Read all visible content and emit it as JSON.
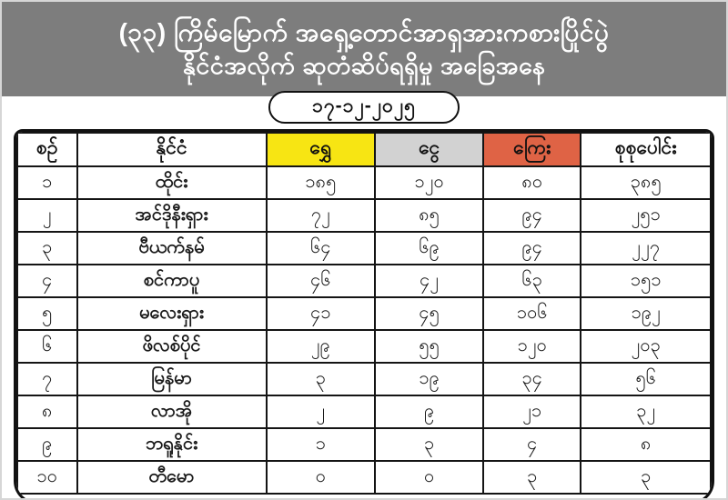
{
  "header": {
    "title_line1": "(၃၃) ကြိမ်မြောက် အရှေ့တောင်အာရှအားကစားပြိုင်ပွဲ",
    "title_line2": "နိုင်ငံအလိုက် ဆုတံဆိပ်ရရှိမှု အခြေအနေ",
    "bg_color": "#7d7d7d",
    "text_color": "#ffffff"
  },
  "date_badge": {
    "text": "၁၇-၁၂-၂၀၂၅"
  },
  "table": {
    "columns": [
      {
        "key": "no",
        "label": "စဉ်",
        "bg": "#ffffff"
      },
      {
        "key": "country",
        "label": "နိုင်ငံ",
        "bg": "#ffffff"
      },
      {
        "key": "gold",
        "label": "ရွှေ",
        "bg": "#f7e513"
      },
      {
        "key": "silver",
        "label": "ငွေ",
        "bg": "#d2d2d2"
      },
      {
        "key": "bronze",
        "label": "ကြေး",
        "bg": "#df6345"
      },
      {
        "key": "total",
        "label": "စုစုပေါင်း",
        "bg": "#ffffff"
      }
    ],
    "rows": [
      {
        "no": "၁",
        "country": "ထိုင်း",
        "gold": "၁၈၅",
        "silver": "၁၂၀",
        "bronze": "၈၀",
        "total": "၃၈၅"
      },
      {
        "no": "၂",
        "country": "အင်ဒိုနီးရှား",
        "gold": "၇၂",
        "silver": "၈၅",
        "bronze": "၉၄",
        "total": "၂၅၁"
      },
      {
        "no": "၃",
        "country": "ဗီယက်နမ်",
        "gold": "၆၄",
        "silver": "၆၉",
        "bronze": "၉၄",
        "total": "၂၂၇"
      },
      {
        "no": "၄",
        "country": "စင်ကာပူ",
        "gold": "၄၆",
        "silver": "၄၂",
        "bronze": "၆၃",
        "total": "၁၅၁"
      },
      {
        "no": "၅",
        "country": "မလေးရှား",
        "gold": "၄၁",
        "silver": "၄၅",
        "bronze": "၁၀၆",
        "total": "၁၉၂"
      },
      {
        "no": "၆",
        "country": "ဖိလစ်ပိုင်",
        "gold": "၂၉",
        "silver": "၅၅",
        "bronze": "၁၂၀",
        "total": "၂၀၃"
      },
      {
        "no": "၇",
        "country": "မြန်မာ",
        "gold": "၃",
        "silver": "၁၉",
        "bronze": "၃၄",
        "total": "၅၆"
      },
      {
        "no": "၈",
        "country": "လာအို",
        "gold": "၂",
        "silver": "၉",
        "bronze": "၂၁",
        "total": "၃၂"
      },
      {
        "no": "၉",
        "country": "ဘရူနိုင်း",
        "gold": "၁",
        "silver": "၃",
        "bronze": "၄",
        "total": "၈"
      },
      {
        "no": "၁၀",
        "country": "တီမော",
        "gold": "၀",
        "silver": "၀",
        "bronze": "၃",
        "total": "၃"
      }
    ]
  },
  "colors": {
    "gold_header_bg": "#f7e513",
    "silver_header_bg": "#d2d2d2",
    "bronze_header_bg": "#df6345",
    "band_gray": "#7d7d7d",
    "border_black": "#111111"
  }
}
